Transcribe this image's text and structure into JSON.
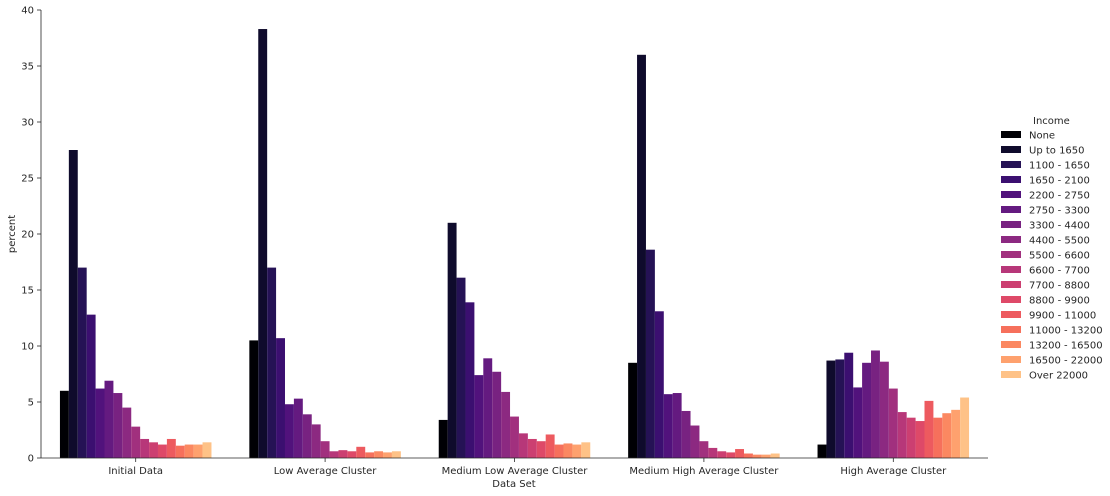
{
  "chart_data": {
    "type": "bar",
    "xlabel": "Data Set",
    "ylabel": "percent",
    "ylim": [
      0,
      40
    ],
    "yticks": [
      0,
      5,
      10,
      15,
      20,
      25,
      30,
      35,
      40
    ],
    "grid": false,
    "legend_title": "Income",
    "legend_position": "right",
    "categories": [
      "Initial Data",
      "Low Average Cluster",
      "Medium Low Average Cluster",
      "Medium High Average Cluster",
      "High Average Cluster"
    ],
    "series": [
      {
        "name": "None",
        "color": "#000004",
        "values": [
          6.0,
          10.5,
          3.4,
          8.5,
          1.2
        ]
      },
      {
        "name": "Up to 1650",
        "color": "#0f0b2c",
        "values": [
          27.5,
          38.3,
          21.0,
          36.0,
          8.7
        ]
      },
      {
        "name": "1100 - 1650",
        "color": "#251255",
        "values": [
          17.0,
          17.0,
          16.1,
          18.6,
          8.8
        ]
      },
      {
        "name": "1650 - 2100",
        "color": "#3b0f70",
        "values": [
          12.8,
          10.7,
          13.9,
          13.1,
          9.4
        ]
      },
      {
        "name": "2200 - 2750",
        "color": "#51127c",
        "values": [
          6.2,
          4.8,
          7.4,
          5.7,
          6.3
        ]
      },
      {
        "name": "2750 - 3300",
        "color": "#641a80",
        "values": [
          6.9,
          5.3,
          8.9,
          5.8,
          8.5
        ]
      },
      {
        "name": "3300 - 4400",
        "color": "#782281",
        "values": [
          5.8,
          3.9,
          7.7,
          4.2,
          9.6
        ]
      },
      {
        "name": "4400 - 5500",
        "color": "#8c2981",
        "values": [
          4.5,
          3.0,
          5.9,
          2.9,
          8.6
        ]
      },
      {
        "name": "5500 - 6600",
        "color": "#a1307e",
        "values": [
          2.8,
          1.5,
          3.7,
          1.5,
          6.2
        ]
      },
      {
        "name": "6600 - 7700",
        "color": "#b73779",
        "values": [
          1.7,
          0.6,
          2.2,
          0.9,
          4.1
        ]
      },
      {
        "name": "7700 - 8800",
        "color": "#cc3f71",
        "values": [
          1.4,
          0.7,
          1.7,
          0.6,
          3.6
        ]
      },
      {
        "name": "8800 - 9900",
        "color": "#de4968",
        "values": [
          1.2,
          0.6,
          1.5,
          0.5,
          3.3
        ]
      },
      {
        "name": "9900 - 11000",
        "color": "#ed5a5f",
        "values": [
          1.7,
          1.0,
          2.1,
          0.8,
          5.1
        ]
      },
      {
        "name": "11000 - 13200",
        "color": "#f6705c",
        "values": [
          1.1,
          0.5,
          1.2,
          0.4,
          3.6
        ]
      },
      {
        "name": "13200 - 16500",
        "color": "#fb8861",
        "values": [
          1.2,
          0.6,
          1.3,
          0.3,
          4.0
        ]
      },
      {
        "name": "16500 - 22000",
        "color": "#fea16e",
        "values": [
          1.2,
          0.5,
          1.2,
          0.3,
          4.3
        ]
      },
      {
        "name": "Over 22000",
        "color": "#fec287",
        "values": [
          1.4,
          0.6,
          1.4,
          0.4,
          5.4
        ]
      }
    ]
  }
}
